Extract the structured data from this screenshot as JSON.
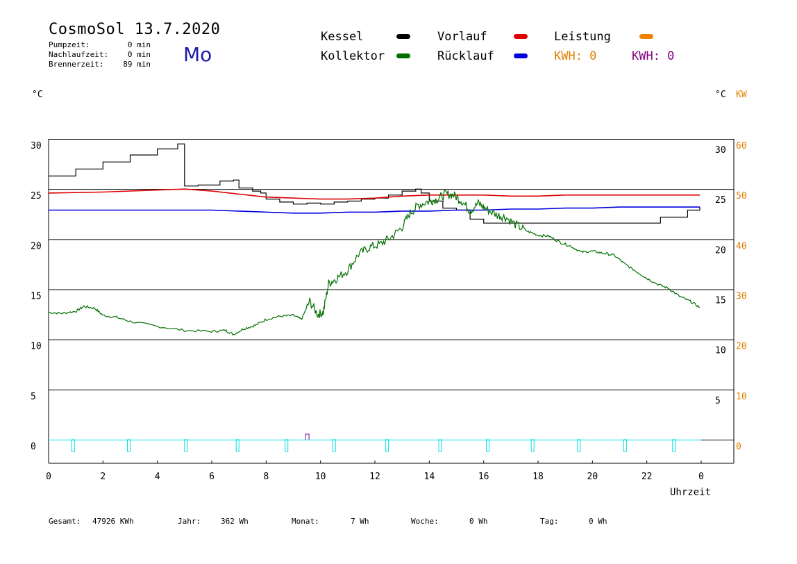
{
  "header": {
    "title": "CosmoSol 13.7.2020",
    "weekday": "Mo",
    "rows": [
      {
        "label": "Pumpzeit:",
        "value": "0 min"
      },
      {
        "label": "Nachlaufzeit:",
        "value": "0 min"
      },
      {
        "label": "Brennerzeit:",
        "value": "89 min"
      }
    ]
  },
  "legend": {
    "kessel": "Kessel",
    "vorlauf": "Vorlauf",
    "leistung": "Leistung",
    "kollektor": "Kollektor",
    "ruecklauf": "Rücklauf",
    "kwh1": "KWH: 0",
    "kwh2": "KWH: 0"
  },
  "colors": {
    "kessel": "#000000",
    "vorlauf": "#e00000",
    "leistung": "#f08000",
    "kollektor": "#007000",
    "ruecklauf": "#0000e0",
    "kwh1": "#e08000",
    "kwh2": "#800080",
    "pump": "#00e0e0",
    "burner": "#800080"
  },
  "axis_units": {
    "left": "°C",
    "right_c": "°C",
    "right_kw": "KW",
    "x": "Uhrzeit"
  },
  "footer": [
    {
      "label": "Gesamt:",
      "value": "47926 KWh"
    },
    {
      "label": "Jahr:",
      "value": "362 Wh"
    },
    {
      "label": "Monat:",
      "value": "7 Wh"
    },
    {
      "label": "Woche:",
      "value": "0 Wh"
    },
    {
      "label": "Tag:",
      "value": "0 Wh"
    }
  ],
  "chart_data": {
    "type": "line",
    "xlabel": "Uhrzeit",
    "ylabel": "°C",
    "x_ticks": [
      "0",
      "2",
      "4",
      "6",
      "8",
      "10",
      "12",
      "14",
      "16",
      "18",
      "20",
      "22",
      "0"
    ],
    "y_ticks_left": [
      "30",
      "25",
      "20",
      "15",
      "10",
      "5",
      "0"
    ],
    "y_ticks_right_c": [
      "30",
      "25",
      "20",
      "15",
      "10",
      "5"
    ],
    "y_ticks_right_kw": [
      "60",
      "50",
      "40",
      "30",
      "20",
      "10",
      "0"
    ],
    "xlim": [
      0,
      24
    ],
    "ylim": [
      0,
      30
    ],
    "grid": true,
    "series": [
      {
        "name": "Kessel",
        "points": [
          [
            0,
            26.3
          ],
          [
            1,
            27.0
          ],
          [
            2,
            27.7
          ],
          [
            3,
            28.4
          ],
          [
            4,
            29.0
          ],
          [
            4.75,
            29.5
          ],
          [
            4.9,
            29.5
          ],
          [
            5.0,
            25.3
          ],
          [
            5.5,
            25.4
          ],
          [
            6.3,
            25.8
          ],
          [
            6.8,
            25.9
          ],
          [
            7.0,
            25.1
          ],
          [
            7.5,
            24.8
          ],
          [
            7.8,
            24.6
          ],
          [
            8.0,
            24.0
          ],
          [
            8.5,
            23.7
          ],
          [
            9.0,
            23.5
          ],
          [
            9.5,
            23.6
          ],
          [
            10.0,
            23.5
          ],
          [
            10.5,
            23.7
          ],
          [
            11.0,
            23.8
          ],
          [
            11.5,
            24.0
          ],
          [
            12.0,
            24.1
          ],
          [
            12.5,
            24.4
          ],
          [
            13.0,
            24.8
          ],
          [
            13.5,
            25.0
          ],
          [
            13.7,
            24.6
          ],
          [
            14.0,
            23.8
          ],
          [
            14.5,
            23.1
          ],
          [
            15.0,
            22.9
          ],
          [
            15.5,
            22.0
          ],
          [
            16.0,
            21.6
          ],
          [
            17.0,
            21.6
          ],
          [
            18.0,
            21.6
          ],
          [
            19.0,
            21.6
          ],
          [
            20.0,
            21.6
          ],
          [
            21.0,
            21.6
          ],
          [
            21.8,
            21.6
          ],
          [
            22.5,
            22.2
          ],
          [
            23.5,
            22.9
          ],
          [
            23.95,
            23.2
          ]
        ]
      },
      {
        "name": "Vorlauf",
        "points": [
          [
            0,
            24.6
          ],
          [
            2,
            24.7
          ],
          [
            4,
            24.9
          ],
          [
            5,
            25.0
          ],
          [
            6,
            24.8
          ],
          [
            7,
            24.5
          ],
          [
            8,
            24.2
          ],
          [
            9,
            24.1
          ],
          [
            10,
            24.0
          ],
          [
            11,
            24.0
          ],
          [
            12,
            24.1
          ],
          [
            13,
            24.3
          ],
          [
            14,
            24.4
          ],
          [
            15,
            24.4
          ],
          [
            16,
            24.4
          ],
          [
            17,
            24.3
          ],
          [
            18,
            24.3
          ],
          [
            19,
            24.4
          ],
          [
            20,
            24.4
          ],
          [
            21,
            24.4
          ],
          [
            22,
            24.4
          ],
          [
            23,
            24.4
          ],
          [
            23.95,
            24.4
          ]
        ]
      },
      {
        "name": "Rücklauf",
        "points": [
          [
            0,
            22.9
          ],
          [
            2,
            22.9
          ],
          [
            4,
            22.9
          ],
          [
            6,
            22.9
          ],
          [
            7,
            22.8
          ],
          [
            8,
            22.7
          ],
          [
            9,
            22.6
          ],
          [
            10,
            22.6
          ],
          [
            11,
            22.7
          ],
          [
            12,
            22.7
          ],
          [
            13,
            22.8
          ],
          [
            14,
            22.8
          ],
          [
            15,
            22.9
          ],
          [
            16,
            22.9
          ],
          [
            17,
            23.0
          ],
          [
            18,
            23.0
          ],
          [
            19,
            23.1
          ],
          [
            20,
            23.1
          ],
          [
            21,
            23.2
          ],
          [
            22,
            23.2
          ],
          [
            23,
            23.2
          ],
          [
            23.95,
            23.2
          ]
        ]
      },
      {
        "name": "Kollektor",
        "points": [
          [
            0,
            12.7
          ],
          [
            0.5,
            12.6
          ],
          [
            1,
            12.8
          ],
          [
            1.3,
            13.3
          ],
          [
            1.7,
            13.1
          ],
          [
            2.0,
            12.4
          ],
          [
            2.5,
            12.2
          ],
          [
            3,
            11.8
          ],
          [
            4,
            11.3
          ],
          [
            5,
            10.9
          ],
          [
            6,
            10.8
          ],
          [
            6.5,
            10.9
          ],
          [
            6.8,
            10.5
          ],
          [
            7.2,
            11.1
          ],
          [
            7.6,
            11.4
          ],
          [
            8.0,
            12.0
          ],
          [
            8.5,
            12.3
          ],
          [
            9.0,
            12.4
          ],
          [
            9.3,
            12.0
          ],
          [
            9.6,
            13.8
          ],
          [
            9.9,
            12.5
          ],
          [
            10.1,
            12.7
          ],
          [
            10.3,
            15.6
          ],
          [
            10.6,
            16.1
          ],
          [
            11.0,
            16.9
          ],
          [
            11.4,
            18.5
          ],
          [
            11.8,
            19.2
          ],
          [
            12.2,
            19.5
          ],
          [
            12.6,
            20.2
          ],
          [
            13.0,
            21.2
          ],
          [
            13.3,
            22.6
          ],
          [
            13.6,
            23.4
          ],
          [
            14.0,
            23.8
          ],
          [
            14.3,
            24.0
          ],
          [
            14.6,
            24.5
          ],
          [
            14.9,
            24.4
          ],
          [
            15.2,
            23.8
          ],
          [
            15.5,
            22.8
          ],
          [
            15.8,
            23.6
          ],
          [
            16.1,
            23.0
          ],
          [
            16.5,
            22.4
          ],
          [
            16.8,
            22.2
          ],
          [
            17.2,
            21.4
          ],
          [
            17.6,
            20.8
          ],
          [
            18.0,
            20.4
          ],
          [
            18.4,
            20.3
          ],
          [
            18.8,
            19.7
          ],
          [
            19.2,
            19.3
          ],
          [
            19.6,
            18.7
          ],
          [
            20.0,
            18.8
          ],
          [
            20.4,
            18.6
          ],
          [
            20.8,
            18.4
          ],
          [
            21.2,
            17.5
          ],
          [
            21.6,
            16.8
          ],
          [
            22.0,
            16.1
          ],
          [
            22.4,
            15.5
          ],
          [
            22.8,
            15.1
          ],
          [
            23.2,
            14.3
          ],
          [
            23.6,
            13.8
          ],
          [
            23.95,
            13.2
          ]
        ]
      }
    ],
    "burner_pulses_h": [
      0.9,
      2.95,
      5.05,
      6.95,
      8.75,
      10.5,
      12.45,
      14.4,
      16.15,
      17.8,
      19.5,
      21.2,
      23.0
    ],
    "kw_pulses_h": [
      9.5
    ]
  }
}
